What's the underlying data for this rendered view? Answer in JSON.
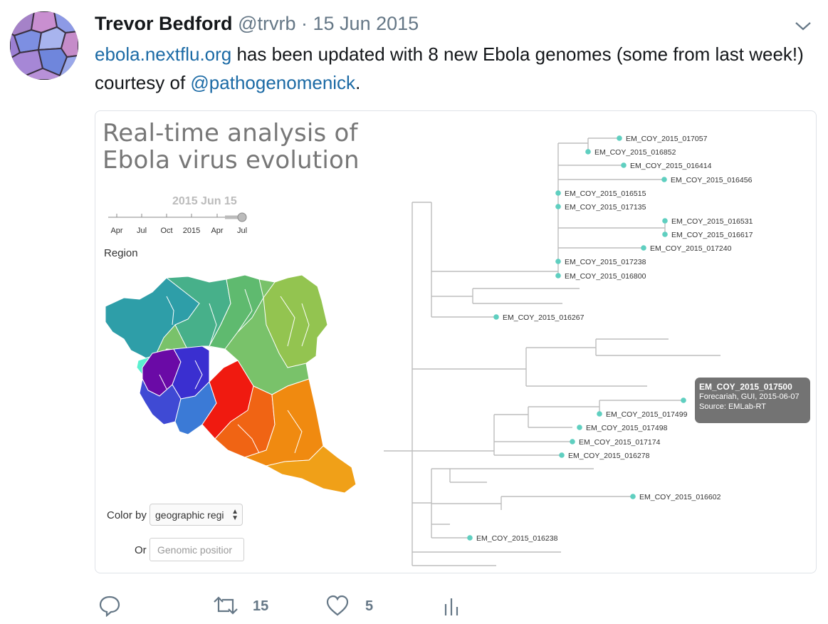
{
  "tweet": {
    "author_name": "Trevor Bedford",
    "author_handle": "@trvrb",
    "separator": "·",
    "date": "15 Jun 2015",
    "text_link": "ebola.nextflu.org",
    "text_part1": " has been updated with 8 new Ebola genomes (some from last week!) courtesy of ",
    "mention": "@pathogenomenick",
    "text_end": ".",
    "retweet_count": "15",
    "like_count": "5"
  },
  "viz": {
    "title_line1": "Real-time analysis of",
    "title_line2": "Ebola virus evolution",
    "date_label": "2015 Jun 15",
    "timeline_ticks": [
      "Apr",
      "Jul",
      "Oct",
      "2015",
      "Apr",
      "Jul"
    ],
    "region_label": "Region",
    "color_by_label": "Color by",
    "color_by_value": "geographic regi",
    "or_label": "Or",
    "genomic_placeholder": "Genomic positior",
    "tip_color": "#5fcfc0",
    "branch_color": "#bdbdbd",
    "tips": [
      {
        "label": "EM_COY_2015_017057"
      },
      {
        "label": "EM_COY_2015_016852"
      },
      {
        "label": "EM_COY_2015_016414"
      },
      {
        "label": "EM_COY_2015_016456"
      },
      {
        "label": "EM_COY_2015_016515"
      },
      {
        "label": "EM_COY_2015_017135"
      },
      {
        "label": "EM_COY_2015_016531"
      },
      {
        "label": "EM_COY_2015_016617"
      },
      {
        "label": "EM_COY_2015_017240"
      },
      {
        "label": "EM_COY_2015_017238"
      },
      {
        "label": "EM_COY_2015_016800"
      },
      {
        "label": "EM_COY_2015_016267"
      },
      {
        "label": "EM_COY_2015_017499"
      },
      {
        "label": "EM_COY_2015_017498"
      },
      {
        "label": "EM_COY_2015_017174"
      },
      {
        "label": "EM_COY_2015_016278"
      },
      {
        "label": "EM_COY_2015_016602"
      },
      {
        "label": "EM_COY_2015_016238"
      }
    ],
    "tooltip": {
      "title": "EM_COY_2015_017500",
      "line2": "Forecariah, GUI, 2015-06-07",
      "line3": "Source: EMLab-RT"
    }
  },
  "colors": {
    "link": "#1b6aa5",
    "meta": "#657786"
  }
}
